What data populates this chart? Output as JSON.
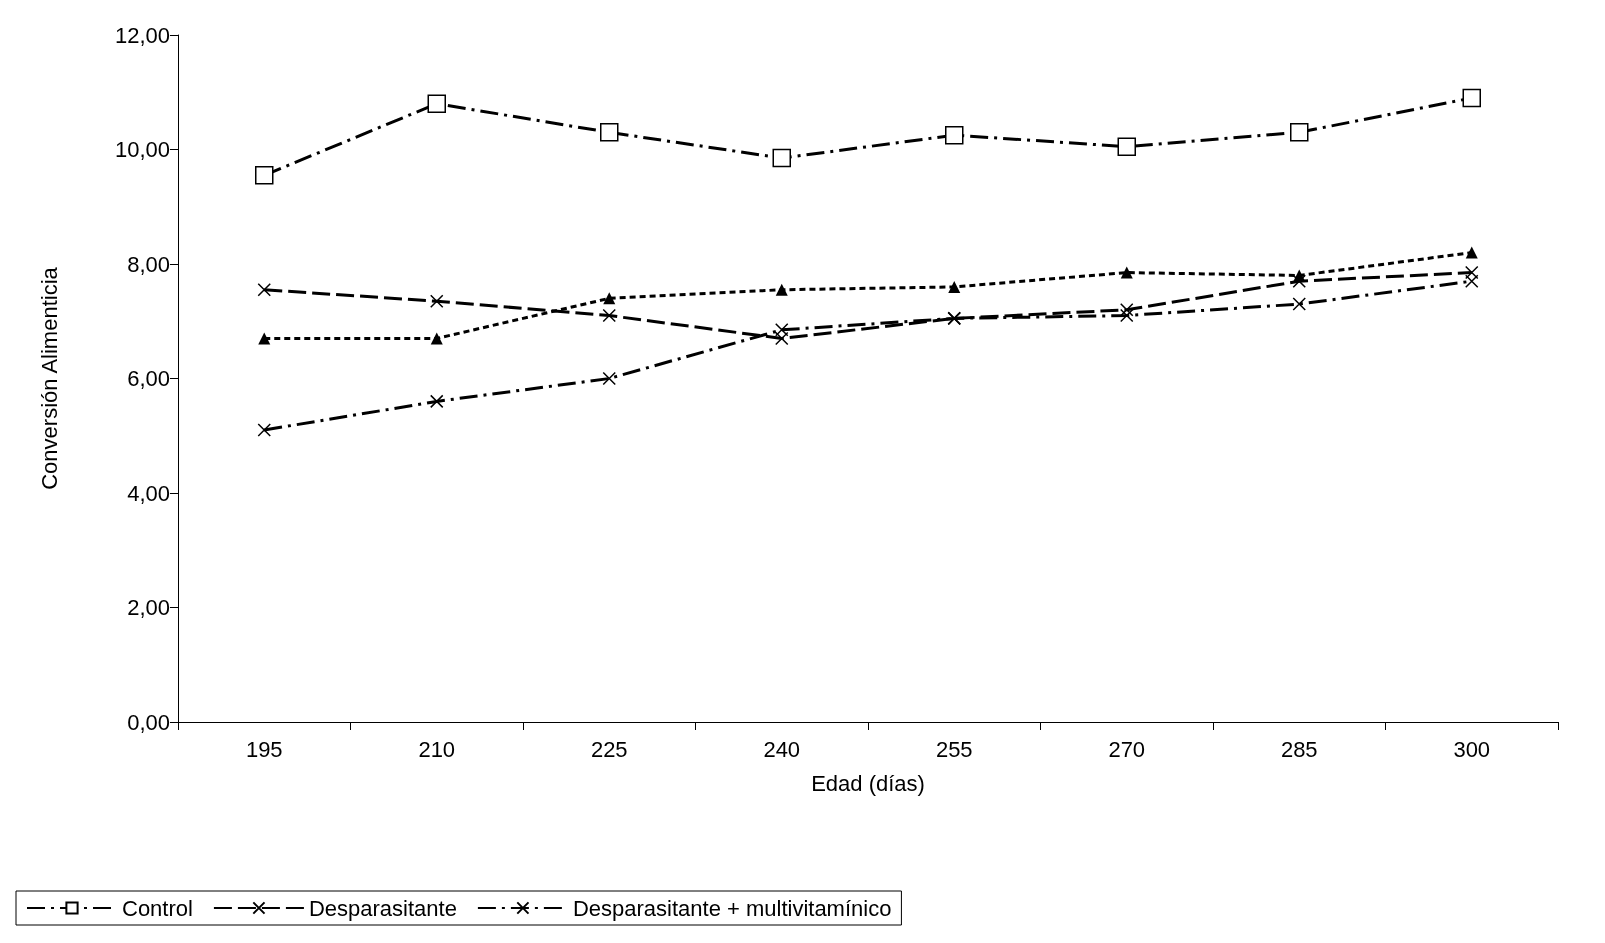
{
  "chart_data": {
    "type": "line",
    "xlabel": "Edad (días)",
    "ylabel": "Conversión Alimenticia",
    "categories": [
      "195",
      "210",
      "225",
      "240",
      "255",
      "270",
      "285",
      "300"
    ],
    "ylim": [
      0,
      12
    ],
    "yticks": [
      {
        "value": 0,
        "label": "0,00"
      },
      {
        "value": 2,
        "label": "2,00"
      },
      {
        "value": 4,
        "label": "4,00"
      },
      {
        "value": 6,
        "label": "6,00"
      },
      {
        "value": 8,
        "label": "8,00"
      },
      {
        "value": 10,
        "label": "10,00"
      },
      {
        "value": 12,
        "label": "12,00"
      }
    ],
    "grid": false,
    "legend": "bottom",
    "series": [
      {
        "name": "Control",
        "color": "#000000",
        "marker": "square",
        "line_style": "dashdot",
        "values": [
          9.55,
          10.8,
          10.3,
          9.85,
          10.25,
          10.05,
          10.3,
          10.9
        ]
      },
      {
        "color": "#000000",
        "marker": "triangle",
        "line_style": "dashed",
        "values": [
          6.7,
          6.7,
          7.4,
          7.55,
          7.6,
          7.85,
          7.8,
          8.2
        ]
      },
      {
        "name": "Desparasitante",
        "color": "#000000",
        "marker": "cross",
        "line_style": "longdash",
        "values": [
          7.55,
          7.35,
          7.1,
          6.7,
          7.05,
          7.2,
          7.7,
          7.85
        ]
      },
      {
        "name": "Desparasitante + multivitamínico",
        "color": "#000000",
        "marker": "cross",
        "line_style": "dashdot",
        "values": [
          5.1,
          5.6,
          6.0,
          6.85,
          7.05,
          7.1,
          7.3,
          7.7
        ]
      }
    ]
  }
}
